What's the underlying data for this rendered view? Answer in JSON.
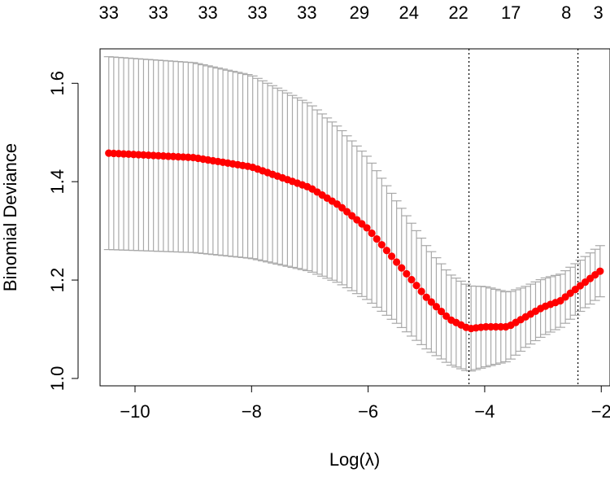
{
  "chart_data": {
    "type": "scatter",
    "xlabel": "Log(λ)",
    "ylabel": "Binomial Deviance",
    "xlim": [
      -10.6,
      -1.85
    ],
    "ylim": [
      0.985,
      1.67
    ],
    "xticks": [
      -10,
      -8,
      -6,
      -4,
      -2
    ],
    "xtick_labels": [
      "−10",
      "−8",
      "−6",
      "−4",
      "−2"
    ],
    "yticks": [
      1.0,
      1.2,
      1.4,
      1.6
    ],
    "ytick_labels": [
      "1.0",
      "1.2",
      "1.4",
      "1.6"
    ],
    "top_axis": {
      "positions": [
        -10.45,
        -9.6,
        -8.75,
        -7.9,
        -7.05,
        -6.15,
        -5.3,
        -4.45,
        -3.55,
        -2.6,
        -2.05
      ],
      "labels": [
        "33",
        "33",
        "33",
        "33",
        "33",
        "29",
        "24",
        "22",
        "17",
        "8",
        "3"
      ]
    },
    "vlines": [
      -4.27,
      -2.4
    ],
    "x_start": -10.45,
    "x_end": -2.02,
    "n_points": 100,
    "mean_anchors": [
      [
        -10.45,
        1.458
      ],
      [
        -9.0,
        1.449
      ],
      [
        -8.0,
        1.43
      ],
      [
        -7.0,
        1.388
      ],
      [
        -6.5,
        1.352
      ],
      [
        -6.0,
        1.304
      ],
      [
        -5.5,
        1.235
      ],
      [
        -5.0,
        1.165
      ],
      [
        -4.6,
        1.12
      ],
      [
        -4.27,
        1.101
      ],
      [
        -4.0,
        1.105
      ],
      [
        -3.6,
        1.105
      ],
      [
        -3.3,
        1.125
      ],
      [
        -3.0,
        1.145
      ],
      [
        -2.7,
        1.158
      ],
      [
        -2.4,
        1.185
      ],
      [
        -2.02,
        1.218
      ]
    ],
    "se_anchors": [
      [
        -10.45,
        0.196
      ],
      [
        -9.0,
        0.193
      ],
      [
        -8.0,
        0.186
      ],
      [
        -7.0,
        0.17
      ],
      [
        -6.5,
        0.158
      ],
      [
        -6.0,
        0.145
      ],
      [
        -5.5,
        0.124
      ],
      [
        -5.0,
        0.105
      ],
      [
        -4.6,
        0.092
      ],
      [
        -4.27,
        0.087
      ],
      [
        -4.0,
        0.082
      ],
      [
        -3.6,
        0.07
      ],
      [
        -3.3,
        0.062
      ],
      [
        -3.0,
        0.058
      ],
      [
        -2.7,
        0.054
      ],
      [
        -2.4,
        0.052
      ],
      [
        -2.02,
        0.052
      ]
    ],
    "colors": {
      "points": "#ff0000",
      "error_bars": "#a9a9a9",
      "axes": "#000000"
    },
    "grid": false
  }
}
